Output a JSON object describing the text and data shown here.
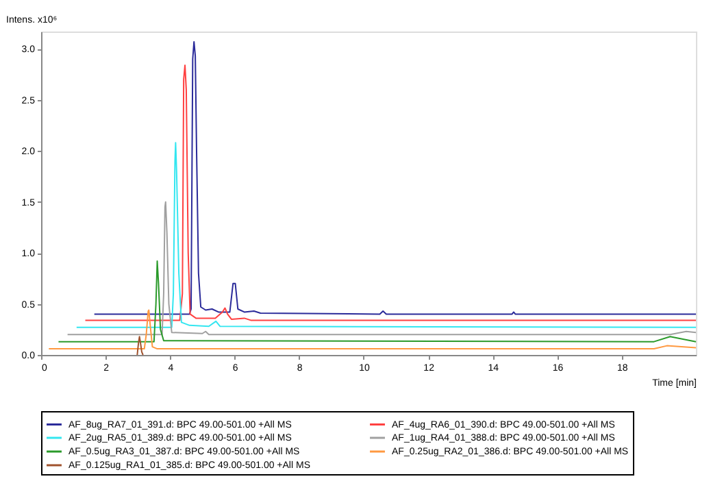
{
  "chart_data": {
    "type": "line",
    "xlabel": "Time [min]",
    "ylabel": "Intens. x10⁶",
    "xlim": [
      0,
      20.3
    ],
    "ylim": [
      0,
      3.17
    ],
    "xticks": [
      0,
      2,
      4,
      6,
      8,
      10,
      12,
      14,
      16,
      18
    ],
    "yticks": [
      {
        "value": 0,
        "label": "0.0"
      },
      {
        "value": 0.5,
        "label": "0.5"
      },
      {
        "value": 1,
        "label": "1.0"
      },
      {
        "value": 1.5,
        "label": "1.5"
      },
      {
        "value": 2,
        "label": "2.0"
      },
      {
        "value": 2.5,
        "label": "2.5"
      },
      {
        "value": 3,
        "label": "3.0"
      }
    ],
    "grid": false,
    "legend": "bottom",
    "line_style": "solid",
    "marker": "none",
    "series": [
      {
        "name": "AF_8ug_RA7_01_391.d: BPC 49.00-501.00 +All MS",
        "color": "#2b2b9a",
        "x": [
          1.65,
          4.6,
          4.65,
          4.7,
          4.74,
          4.78,
          4.82,
          4.88,
          4.95,
          5.1,
          5.3,
          5.5,
          5.85,
          5.95,
          6.02,
          6.1,
          6.3,
          6.6,
          6.8,
          10.5,
          10.6,
          10.7,
          14.6,
          14.65,
          14.7,
          20.3
        ],
        "values": [
          0.4,
          0.4,
          0.45,
          2.9,
          3.07,
          2.93,
          2.0,
          0.8,
          0.47,
          0.44,
          0.45,
          0.42,
          0.42,
          0.7,
          0.7,
          0.45,
          0.42,
          0.43,
          0.41,
          0.4,
          0.43,
          0.4,
          0.4,
          0.42,
          0.4,
          0.4
        ]
      },
      {
        "name": "AF_4ug_RA6_01_390.d: BPC 49.00-501.00 +All MS",
        "color": "#ff4040",
        "x": [
          1.37,
          4.3,
          4.38,
          4.42,
          4.46,
          4.5,
          4.56,
          4.62,
          4.8,
          5.4,
          5.62,
          5.7,
          5.78,
          5.9,
          6.3,
          6.5,
          20.3
        ],
        "values": [
          0.34,
          0.34,
          0.6,
          2.7,
          2.84,
          2.6,
          1.0,
          0.4,
          0.36,
          0.36,
          0.42,
          0.46,
          0.4,
          0.35,
          0.36,
          0.34,
          0.34
        ]
      },
      {
        "name": "AF_2ug_RA5_01_389.d: BPC 49.00-501.00 +All MS",
        "color": "#33e6f0",
        "x": [
          1.1,
          4.05,
          4.1,
          4.15,
          4.17,
          4.2,
          4.27,
          4.35,
          4.6,
          5.2,
          5.42,
          5.55,
          20.3
        ],
        "values": [
          0.27,
          0.27,
          0.6,
          1.9,
          2.08,
          1.8,
          0.8,
          0.32,
          0.29,
          0.28,
          0.33,
          0.28,
          0.27
        ]
      },
      {
        "name": "AF_1ug_RA4_01_388.d: BPC 49.00-501.00 +All MS",
        "color": "#a0a0a0",
        "x": [
          0.82,
          3.75,
          3.8,
          3.84,
          3.86,
          3.9,
          3.96,
          4.05,
          5.0,
          5.1,
          5.2,
          19.5,
          20.0,
          20.3
        ],
        "values": [
          0.2,
          0.2,
          0.6,
          1.45,
          1.5,
          1.2,
          0.5,
          0.22,
          0.21,
          0.23,
          0.2,
          0.2,
          0.23,
          0.22
        ]
      },
      {
        "name": "AF_0.5ug_RA3_01_387.d: BPC 49.00-501.00 +All MS",
        "color": "#2a9a2a",
        "x": [
          0.54,
          3.5,
          3.56,
          3.6,
          3.64,
          3.7,
          3.8,
          19.0,
          19.5,
          20.3
        ],
        "values": [
          0.13,
          0.13,
          0.5,
          0.92,
          0.7,
          0.25,
          0.14,
          0.13,
          0.18,
          0.13
        ]
      },
      {
        "name": "AF_0.25ug_RA2_01_386.d: BPC 49.00-501.00 +All MS",
        "color": "#ff9940",
        "x": [
          0.24,
          3.2,
          3.26,
          3.32,
          3.34,
          3.38,
          3.45,
          3.6,
          19.0,
          19.4,
          20.3
        ],
        "values": [
          0.06,
          0.06,
          0.2,
          0.43,
          0.44,
          0.3,
          0.08,
          0.06,
          0.06,
          0.09,
          0.07
        ]
      },
      {
        "name": "AF_0.125ug_RA1_01_385.d: BPC 49.00-501.00 +All MS",
        "color": "#a0522d",
        "x": [
          2.98,
          3.02,
          3.05,
          3.08,
          3.12,
          3.16
        ],
        "values": [
          0.0,
          0.12,
          0.18,
          0.12,
          0.03,
          0.0
        ]
      }
    ]
  }
}
